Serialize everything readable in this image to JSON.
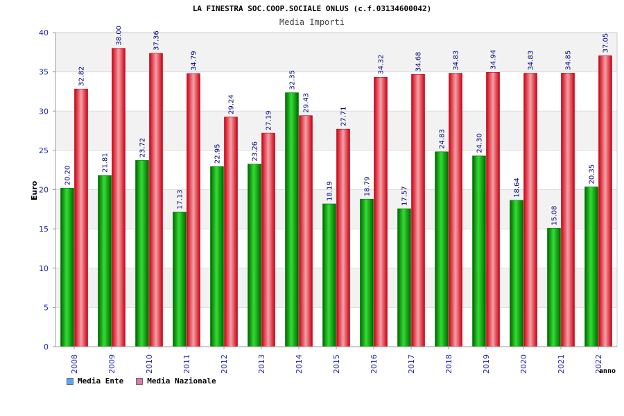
{
  "colors": {
    "ente": "#22cc22",
    "ente_dark": "#007700",
    "nazionale": "#ee3344",
    "nazionale_dark": "#bb0011",
    "band": "#f2f2f2",
    "axis_text": "#1f1fb8",
    "label_text": "#000080",
    "legend_ente": "#5aa6ee",
    "legend_nazionale": "#e078b0"
  },
  "chart_data": {
    "type": "bar",
    "title": "LA FINESTRA SOC.COOP.SOCIALE ONLUS (c.f.03134600042)",
    "subtitle": "Media Importi",
    "xlabel": "anno",
    "ylabel": "Euro",
    "ylim": [
      0,
      40
    ],
    "yticks": [
      0,
      5,
      10,
      15,
      20,
      25,
      30,
      35,
      40
    ],
    "categories": [
      "2008",
      "2009",
      "2010",
      "2011",
      "2012",
      "2013",
      "2014",
      "2015",
      "2016",
      "2017",
      "2018",
      "2019",
      "2020",
      "2021",
      "2022"
    ],
    "series": [
      {
        "name": "Media Ente",
        "values": [
          20.2,
          21.81,
          23.72,
          17.13,
          22.95,
          23.26,
          32.35,
          18.19,
          18.79,
          17.57,
          24.83,
          24.3,
          18.64,
          15.08,
          20.35
        ],
        "labels": [
          "20.20",
          "21.81",
          "23.72",
          "17.13",
          "22.95",
          "23.26",
          "32.35",
          "18.19",
          "18.79",
          "17.57",
          "24.83",
          "24.30",
          "18.64",
          "15.08",
          "20.35"
        ]
      },
      {
        "name": "Media Nazionale",
        "values": [
          32.82,
          38.0,
          37.36,
          34.79,
          29.24,
          27.19,
          29.43,
          27.71,
          34.32,
          34.68,
          34.83,
          34.94,
          34.83,
          34.85,
          37.05
        ],
        "labels": [
          "32.82",
          "38.00",
          "37.36",
          "34.79",
          "29.24",
          "27.19",
          "29.43",
          "27.71",
          "34.32",
          "34.68",
          "34.83",
          "34.94",
          "34.83",
          "34.85",
          "37.05"
        ]
      }
    ],
    "grid": true,
    "legend_position": "bottom-left"
  }
}
